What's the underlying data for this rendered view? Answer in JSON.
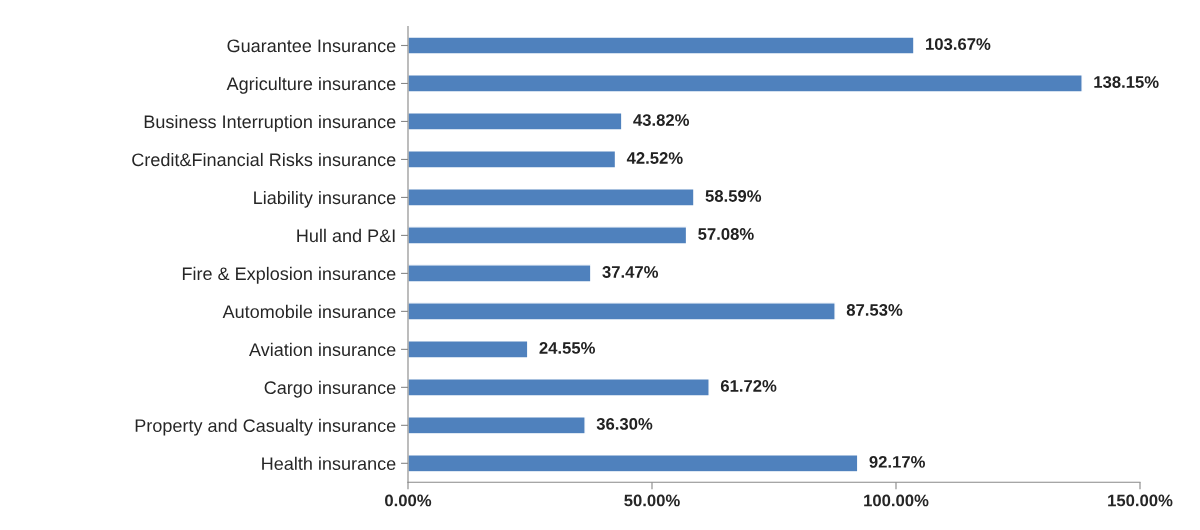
{
  "chart_data": {
    "type": "bar",
    "orientation": "horizontal",
    "categories": [
      "Guarantee Insurance",
      "Agriculture insurance",
      "Business Interruption insurance",
      "Credit&Financial Risks insurance",
      "Liability insurance",
      "Hull and P&I",
      "Fire & Explosion insurance",
      "Automobile insurance",
      "Aviation insurance",
      "Cargo insurance",
      "Property and Casualty insurance",
      "Health insurance"
    ],
    "values": [
      103.67,
      138.15,
      43.82,
      42.52,
      58.59,
      57.08,
      37.47,
      87.53,
      24.55,
      61.72,
      36.3,
      92.17
    ],
    "value_labels": [
      "103.67%",
      "138.15%",
      "43.82%",
      "42.52%",
      "58.59%",
      "57.08%",
      "37.47%",
      "87.53%",
      "24.55%",
      "61.72%",
      "36.30%",
      "92.17%"
    ],
    "color": "#4f81bd",
    "xlim": [
      0,
      150
    ],
    "xticks": [
      {
        "value": 0,
        "label": "0.00%"
      },
      {
        "value": 50,
        "label": "50.00%"
      },
      {
        "value": 100,
        "label": "100.00%"
      },
      {
        "value": 150,
        "label": "150.00%"
      }
    ],
    "grid": false,
    "legend": false
  }
}
